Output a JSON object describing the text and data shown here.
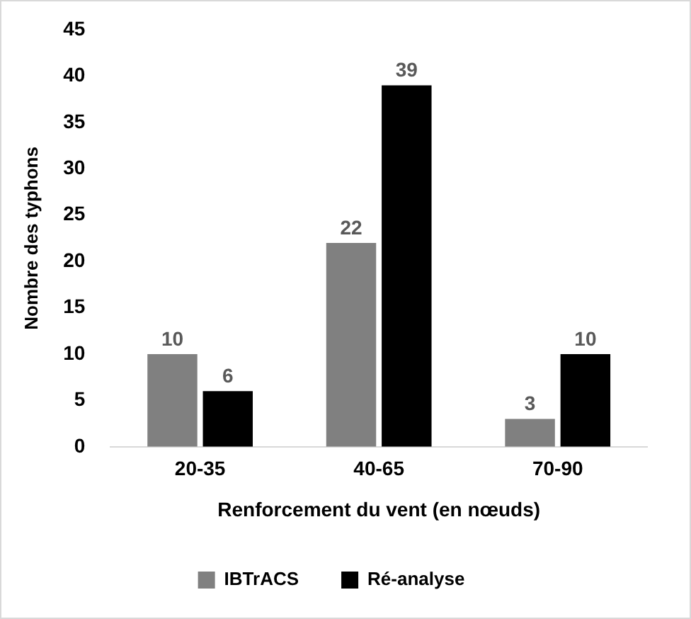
{
  "chart_data": {
    "type": "bar",
    "xlabel": "Renforcement du vent (en nœuds)",
    "ylabel": "Nombre des typhons",
    "categories": [
      "20-35",
      "40-65",
      "70-90"
    ],
    "series": [
      {
        "name": "IBTrACS",
        "color": "#808080",
        "values": [
          10,
          22,
          3
        ]
      },
      {
        "name": "Ré-analyse",
        "color": "#000000",
        "values": [
          6,
          39,
          10
        ]
      }
    ],
    "ylim": [
      0,
      45
    ],
    "yticks": [
      0,
      5,
      10,
      15,
      20,
      25,
      30,
      35,
      40,
      45
    ],
    "grid": false,
    "legend": "bottom",
    "data_labels": true
  }
}
